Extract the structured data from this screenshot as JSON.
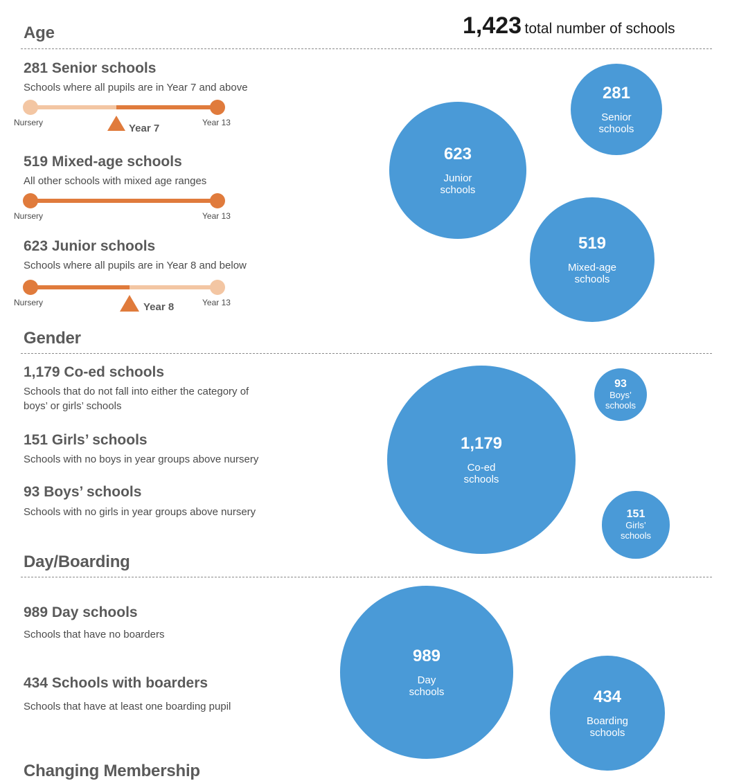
{
  "total": {
    "number": "1,423",
    "text": "total number of schools"
  },
  "sections": {
    "age": {
      "title": "Age",
      "items": [
        {
          "title": "281 Senior schools",
          "desc": "Schools where all pupils are in Year 7 and above",
          "scale": {
            "start": "Nursery",
            "end": "Year 13",
            "marker": "Year 7",
            "marker_fraction": 0.46,
            "active": "right"
          }
        },
        {
          "title": "519 Mixed-age schools",
          "desc": "All other schools with mixed age ranges",
          "scale": {
            "start": "Nursery",
            "end": "Year 13",
            "active": "full"
          }
        },
        {
          "title": "623 Junior schools",
          "desc": "Schools where all pupils are in Year 8 and below",
          "scale": {
            "start": "Nursery",
            "end": "Year 13",
            "marker": "Year 8",
            "marker_fraction": 0.53,
            "active": "left"
          }
        }
      ]
    },
    "gender": {
      "title": "Gender",
      "items": [
        {
          "title": "1,179 Co-ed schools",
          "desc_lines": [
            "Schools that do not fall into either the category of",
            "boys’ or girls’ schools"
          ]
        },
        {
          "title": "151 Girls’ schools",
          "desc": "Schools with no boys in year groups above nursery"
        },
        {
          "title": "93 Boys’ schools",
          "desc": "Schools with no girls in year groups above nursery"
        }
      ]
    },
    "boarding": {
      "title": "Day/Boarding",
      "items": [
        {
          "title": "989 Day schools",
          "desc": "Schools that have no boarders"
        },
        {
          "title": "434 Schools with boarders",
          "desc": "Schools that have at least one boarding pupil"
        }
      ]
    },
    "next": {
      "title": "Changing Membership"
    }
  },
  "colors": {
    "bubble": "#4a9ad7",
    "scale_active": "#e07b3c",
    "scale_inactive": "#f3c6a3",
    "divider": "#8a8a8a"
  },
  "chart_data": [
    {
      "type": "bubble",
      "group": "Age",
      "bubbles": [
        {
          "value": 281,
          "value_label": "281",
          "label_lines": [
            "Senior",
            "schools"
          ]
        },
        {
          "value": 623,
          "value_label": "623",
          "label_lines": [
            "Junior",
            "schools"
          ]
        },
        {
          "value": 519,
          "value_label": "519",
          "label_lines": [
            "Mixed-age",
            "schools"
          ]
        }
      ]
    },
    {
      "type": "bubble",
      "group": "Gender",
      "bubbles": [
        {
          "value": 1179,
          "value_label": "1,179",
          "label_lines": [
            "Co-ed",
            "schools"
          ]
        },
        {
          "value": 93,
          "value_label": "93",
          "label_lines": [
            "Boys’",
            "schools"
          ]
        },
        {
          "value": 151,
          "value_label": "151",
          "label_lines": [
            "Girls’",
            "schools"
          ]
        }
      ]
    },
    {
      "type": "bubble",
      "group": "Day/Boarding",
      "bubbles": [
        {
          "value": 989,
          "value_label": "989",
          "label_lines": [
            "Day",
            "schools"
          ]
        },
        {
          "value": 434,
          "value_label": "434",
          "label_lines": [
            "Boarding",
            "schools"
          ]
        }
      ]
    }
  ]
}
